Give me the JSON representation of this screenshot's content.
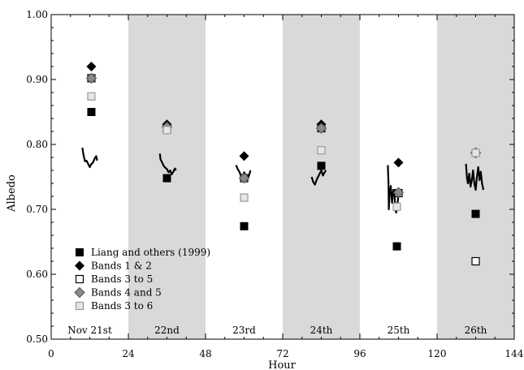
{
  "chart_data": {
    "type": "scatter",
    "title": "",
    "xlabel": "Hour",
    "ylabel": "Albedo",
    "xlim": [
      0,
      144
    ],
    "ylim": [
      0.5,
      1.0
    ],
    "x_ticks": [
      0,
      24,
      48,
      72,
      96,
      120,
      144
    ],
    "x_tick_labels": [
      "0",
      "24",
      "48",
      "72",
      "96",
      "120",
      "144"
    ],
    "y_ticks": [
      0.5,
      0.6,
      0.7,
      0.8,
      0.9,
      1.0
    ],
    "y_tick_labels": [
      "0.50",
      "0.60",
      "0.70",
      "0.80",
      "0.90",
      "1.00"
    ],
    "day_bands": [
      {
        "label": "Nov 21st",
        "start": 0,
        "end": 24,
        "shaded": false
      },
      {
        "label": "22nd",
        "start": 24,
        "end": 48,
        "shaded": true
      },
      {
        "label": "23rd",
        "start": 48,
        "end": 72,
        "shaded": false
      },
      {
        "label": "24th",
        "start": 72,
        "end": 96,
        "shaded": true
      },
      {
        "label": "25th",
        "start": 96,
        "end": 120,
        "shaded": false
      },
      {
        "label": "26th",
        "start": 120,
        "end": 144,
        "shaded": true
      }
    ],
    "legend_position": "bottom-left",
    "series": [
      {
        "name": "Liang and others (1999)",
        "marker": "filled-square",
        "color": "#000000",
        "points": [
          [
            12.5,
            0.85
          ],
          [
            36.0,
            0.748
          ],
          [
            60.0,
            0.674
          ],
          [
            84.0,
            0.767
          ],
          [
            107.5,
            0.643
          ],
          [
            132.0,
            0.693
          ]
        ]
      },
      {
        "name": "Bands 1 & 2",
        "marker": "filled-diamond",
        "color": "#000000",
        "points": [
          [
            12.5,
            0.92
          ],
          [
            36.0,
            0.831
          ],
          [
            60.0,
            0.782
          ],
          [
            84.0,
            0.831
          ],
          [
            108.0,
            0.772
          ],
          [
            132.0,
            0.788
          ]
        ]
      },
      {
        "name": "Bands 3 to 5",
        "marker": "open-square",
        "color": "#000000",
        "points": [
          [
            12.5,
            0.902
          ],
          [
            36.0,
            0.825
          ],
          [
            60.0,
            0.748
          ],
          [
            84.0,
            0.825
          ],
          [
            108.0,
            0.725
          ],
          [
            132.0,
            0.62
          ]
        ]
      },
      {
        "name": "Bands 4 and 5",
        "marker": "gray-diamond",
        "color": "#8a8a8a",
        "points": [
          [
            12.5,
            0.902
          ],
          [
            36.0,
            0.827
          ],
          [
            60.0,
            0.748
          ],
          [
            84.0,
            0.825
          ],
          [
            108.0,
            0.726
          ],
          [
            132.0,
            0.787
          ]
        ]
      },
      {
        "name": "Bands 3 to 6",
        "marker": "light-square",
        "color": "#c8c8c8",
        "points": [
          [
            12.5,
            0.874
          ],
          [
            36.0,
            0.822
          ],
          [
            60.0,
            0.718
          ],
          [
            84.0,
            0.791
          ],
          [
            107.5,
            0.704
          ],
          [
            132.0,
            0.787
          ]
        ]
      }
    ],
    "measured_traces": [
      {
        "points": [
          [
            9.7,
            0.795
          ],
          [
            10.0,
            0.785
          ],
          [
            10.5,
            0.774
          ],
          [
            11.0,
            0.775
          ],
          [
            11.5,
            0.77
          ],
          [
            12.0,
            0.765
          ],
          [
            12.5,
            0.77
          ],
          [
            13.0,
            0.772
          ],
          [
            13.5,
            0.778
          ],
          [
            14.0,
            0.782
          ],
          [
            14.3,
            0.775
          ]
        ]
      },
      {
        "points": [
          [
            33.8,
            0.786
          ],
          [
            34.0,
            0.777
          ],
          [
            34.5,
            0.772
          ],
          [
            35.0,
            0.767
          ],
          [
            35.5,
            0.764
          ],
          [
            36.0,
            0.762
          ],
          [
            36.5,
            0.757
          ],
          [
            37.0,
            0.76
          ],
          [
            37.5,
            0.754
          ],
          [
            38.0,
            0.758
          ],
          [
            38.5,
            0.763
          ],
          [
            38.8,
            0.76
          ]
        ]
      },
      {
        "points": [
          [
            57.5,
            0.768
          ],
          [
            58.0,
            0.762
          ],
          [
            58.5,
            0.758
          ],
          [
            59.0,
            0.752
          ],
          [
            59.5,
            0.75
          ],
          [
            60.0,
            0.757
          ],
          [
            60.5,
            0.752
          ],
          [
            61.0,
            0.746
          ],
          [
            61.5,
            0.752
          ],
          [
            62.0,
            0.76
          ]
        ]
      },
      {
        "points": [
          [
            81.0,
            0.75
          ],
          [
            81.5,
            0.742
          ],
          [
            82.0,
            0.738
          ],
          [
            82.5,
            0.745
          ],
          [
            83.0,
            0.75
          ],
          [
            83.5,
            0.755
          ],
          [
            84.0,
            0.76
          ],
          [
            84.5,
            0.752
          ],
          [
            85.0,
            0.757
          ],
          [
            85.5,
            0.76
          ]
        ]
      },
      {
        "points": [
          [
            104.7,
            0.768
          ],
          [
            104.9,
            0.74
          ],
          [
            105.0,
            0.7
          ],
          [
            105.2,
            0.72
          ],
          [
            105.6,
            0.736
          ],
          [
            106.0,
            0.71
          ],
          [
            106.4,
            0.73
          ],
          [
            106.8,
            0.72
          ],
          [
            107.0,
            0.7
          ],
          [
            107.3,
            0.695
          ],
          [
            107.6,
            0.705
          ],
          [
            108.0,
            0.722
          ],
          [
            108.4,
            0.728
          ]
        ]
      },
      {
        "points": [
          [
            129.0,
            0.77
          ],
          [
            129.3,
            0.748
          ],
          [
            129.6,
            0.74
          ],
          [
            130.0,
            0.755
          ],
          [
            130.4,
            0.735
          ],
          [
            130.8,
            0.745
          ],
          [
            131.2,
            0.76
          ],
          [
            131.6,
            0.74
          ],
          [
            132.0,
            0.73
          ],
          [
            132.4,
            0.75
          ],
          [
            132.8,
            0.765
          ],
          [
            133.2,
            0.745
          ],
          [
            133.6,
            0.758
          ],
          [
            134.0,
            0.74
          ],
          [
            134.4,
            0.73
          ]
        ]
      }
    ]
  }
}
